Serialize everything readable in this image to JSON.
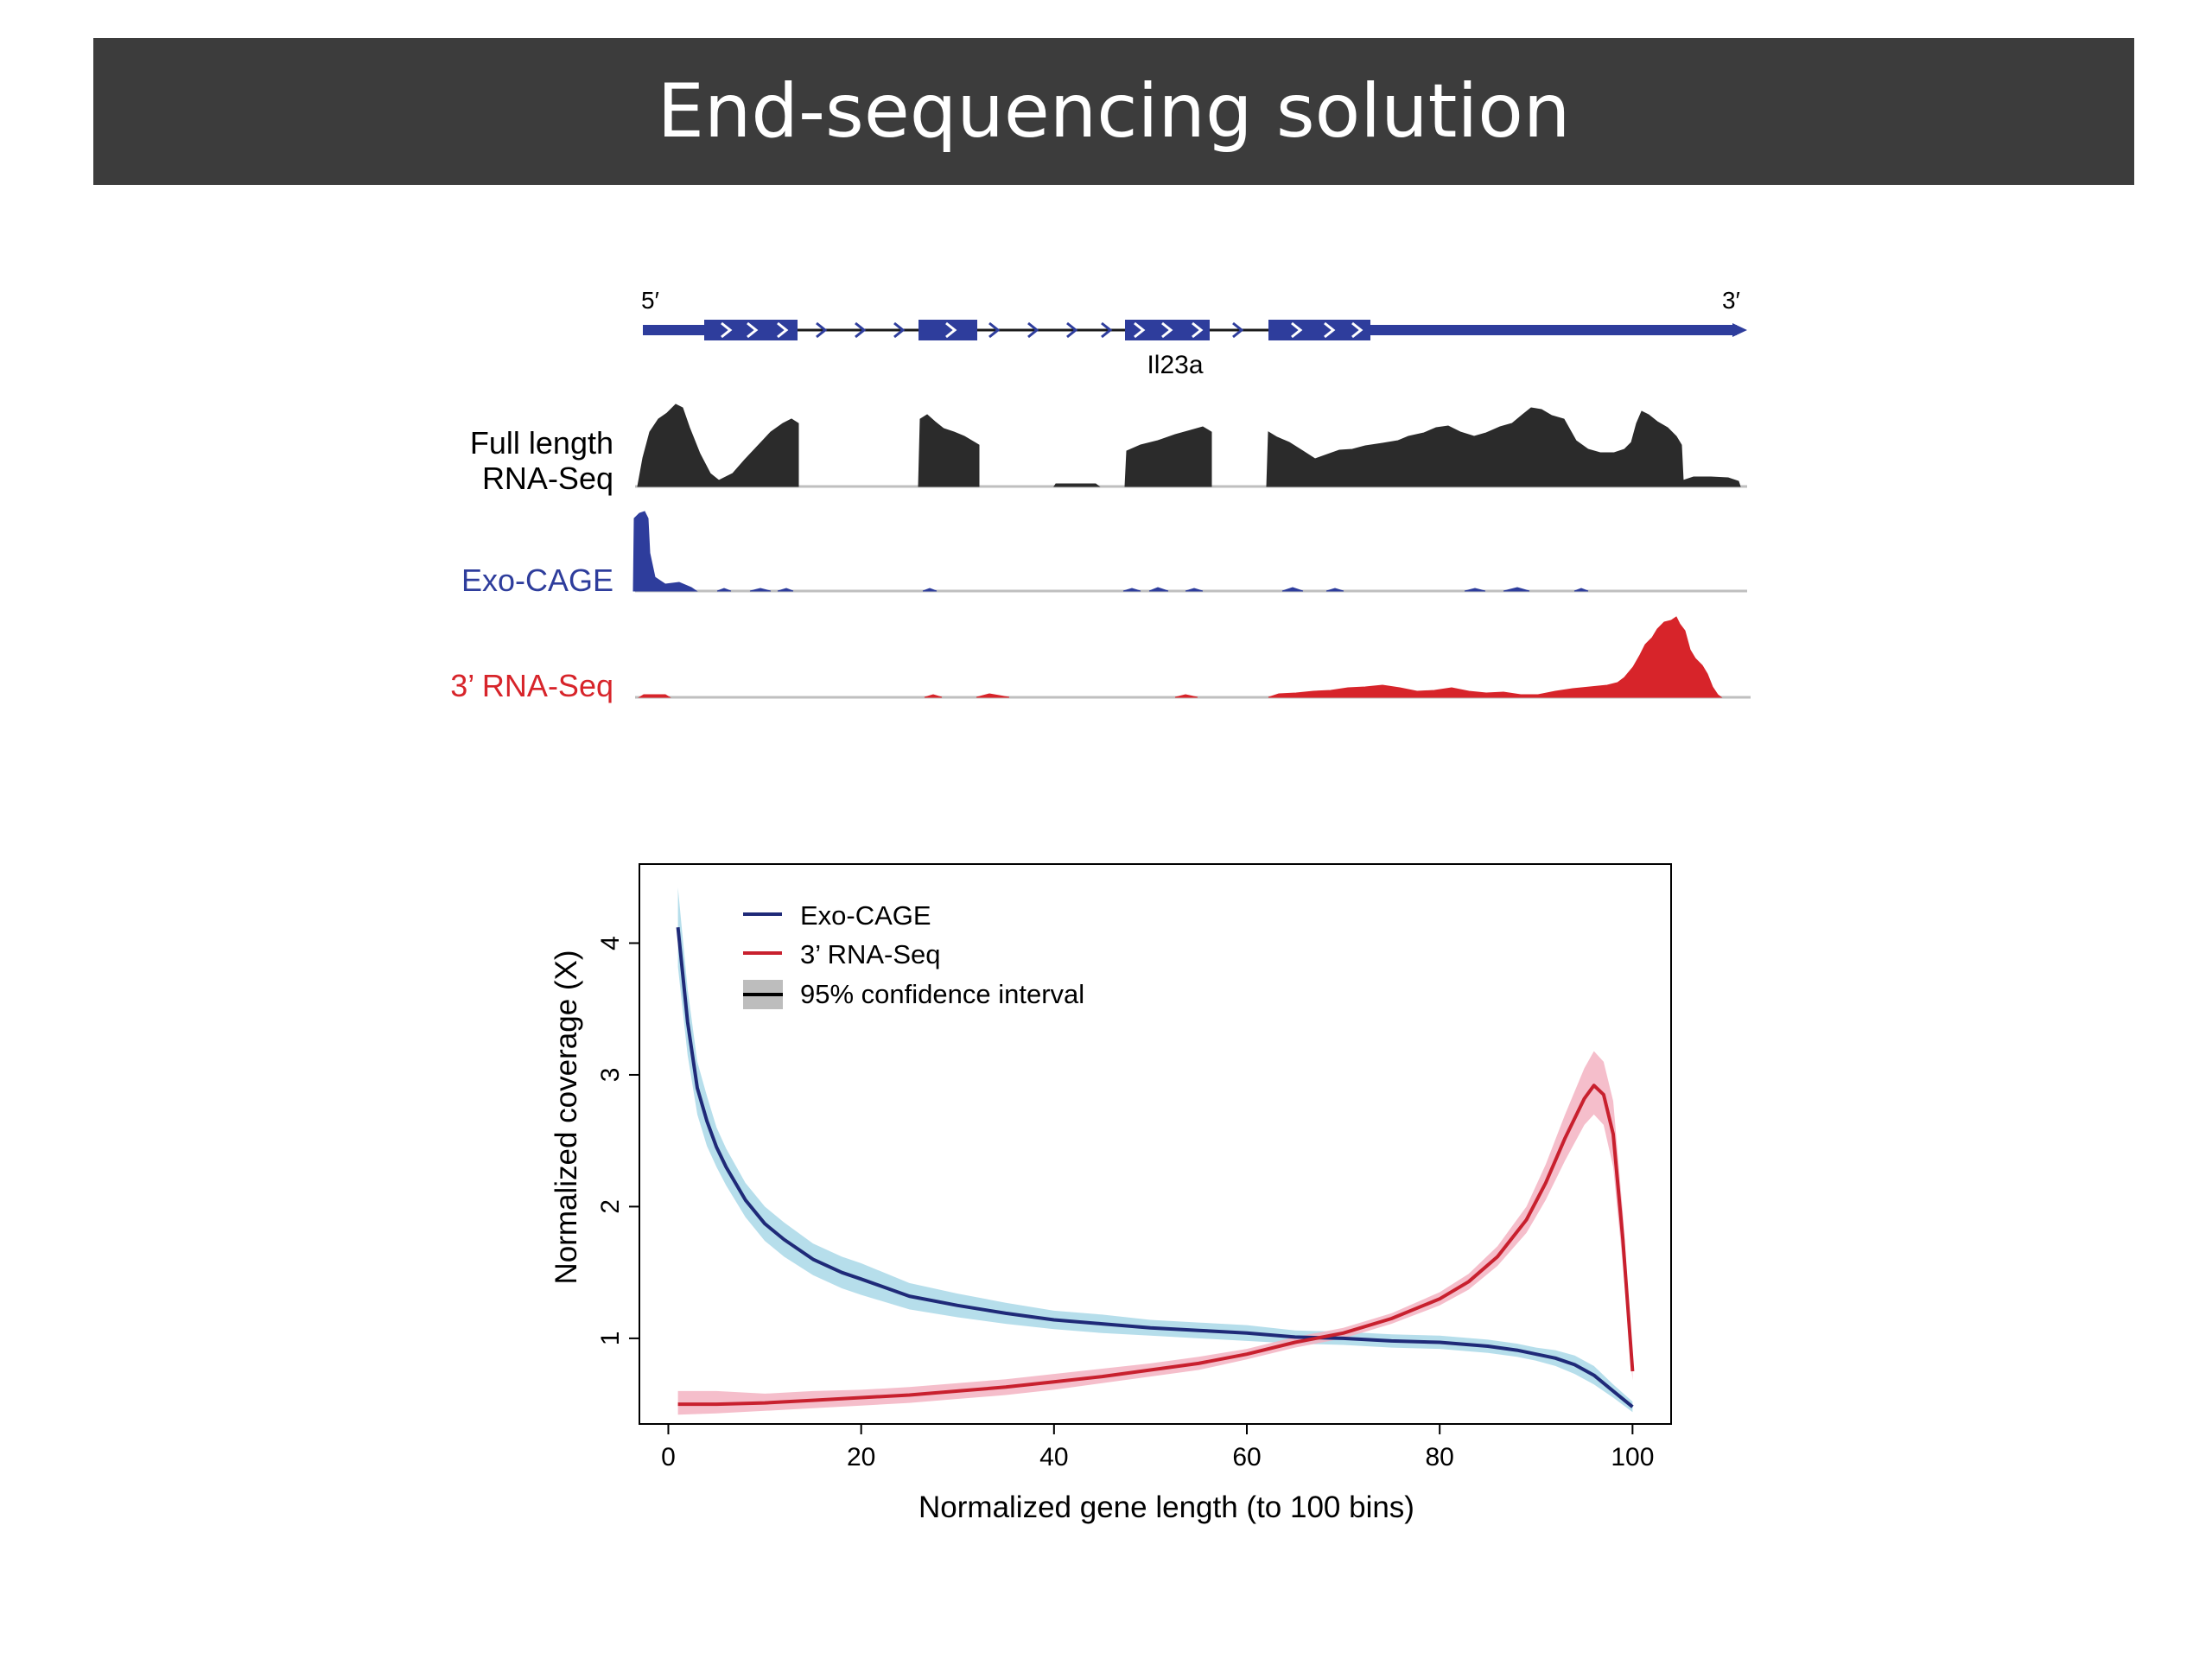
{
  "slide": {
    "title": "End-sequencing solution"
  },
  "gene_panel": {
    "five_prime": "5′",
    "three_prime": "3′",
    "gene_name": "Il23a",
    "tracks": [
      {
        "label_lines": [
          "Full length",
          "RNA-Seq"
        ],
        "color": "#2b2b2b"
      },
      {
        "label_lines": [
          "Exo-CAGE"
        ],
        "color": "#2e3d9c"
      },
      {
        "label_lines": [
          "3’ RNA-Seq"
        ],
        "color": "#d7242a"
      }
    ]
  },
  "chart_data": {
    "type": "line",
    "xlabel": "Normalized gene length (to 100 bins)",
    "ylabel": "Normalized coverage (X)",
    "xlim": [
      -3,
      104
    ],
    "ylim": [
      0.35,
      4.6
    ],
    "xticks": [
      0,
      20,
      40,
      60,
      80,
      100
    ],
    "yticks": [
      1,
      2,
      3,
      4
    ],
    "grid": false,
    "legend_position": "top-left",
    "legend": [
      {
        "label": "Exo-CAGE",
        "kind": "line",
        "color": "#1f2a78"
      },
      {
        "label": "3’ RNA-Seq",
        "kind": "line",
        "color": "#c8202e"
      },
      {
        "label": "95% confidence interval",
        "kind": "band",
        "color": "#bdbdbd"
      }
    ],
    "series": [
      {
        "name": "Exo-CAGE",
        "color": "#1f2a78",
        "band_color": "#a9d8e8",
        "x": [
          1,
          2,
          3,
          4,
          5,
          6,
          8,
          10,
          12,
          15,
          18,
          20,
          25,
          30,
          35,
          40,
          45,
          50,
          55,
          60,
          65,
          70,
          75,
          80,
          85,
          88,
          90,
          92,
          94,
          96,
          98,
          100
        ],
        "y": [
          4.12,
          3.4,
          2.9,
          2.65,
          2.45,
          2.3,
          2.05,
          1.87,
          1.75,
          1.6,
          1.5,
          1.45,
          1.32,
          1.25,
          1.19,
          1.14,
          1.11,
          1.08,
          1.06,
          1.04,
          1.01,
          1.0,
          0.98,
          0.97,
          0.94,
          0.91,
          0.88,
          0.85,
          0.8,
          0.72,
          0.6,
          0.48
        ],
        "ci_low": [
          3.82,
          3.15,
          2.7,
          2.46,
          2.3,
          2.16,
          1.92,
          1.74,
          1.62,
          1.48,
          1.38,
          1.33,
          1.22,
          1.16,
          1.11,
          1.07,
          1.04,
          1.02,
          1.0,
          0.98,
          0.96,
          0.95,
          0.93,
          0.92,
          0.89,
          0.86,
          0.83,
          0.79,
          0.73,
          0.65,
          0.55,
          0.44
        ],
        "ci_high": [
          4.42,
          3.65,
          3.1,
          2.84,
          2.6,
          2.44,
          2.18,
          2.0,
          1.88,
          1.72,
          1.62,
          1.57,
          1.42,
          1.34,
          1.27,
          1.21,
          1.18,
          1.14,
          1.12,
          1.1,
          1.06,
          1.05,
          1.03,
          1.02,
          0.99,
          0.96,
          0.93,
          0.91,
          0.87,
          0.79,
          0.65,
          0.52
        ]
      },
      {
        "name": "3’ RNA-Seq",
        "color": "#c8202e",
        "band_color": "#f3b3c2",
        "x": [
          1,
          5,
          10,
          15,
          20,
          25,
          30,
          35,
          40,
          45,
          50,
          55,
          60,
          65,
          70,
          75,
          80,
          83,
          86,
          89,
          91,
          93,
          95,
          96,
          97,
          98,
          99,
          100
        ],
        "y": [
          0.5,
          0.5,
          0.51,
          0.53,
          0.55,
          0.57,
          0.6,
          0.63,
          0.67,
          0.71,
          0.76,
          0.81,
          0.88,
          0.97,
          1.04,
          1.15,
          1.3,
          1.43,
          1.62,
          1.9,
          2.18,
          2.52,
          2.82,
          2.92,
          2.85,
          2.55,
          1.75,
          0.75
        ],
        "ci_low": [
          0.42,
          0.43,
          0.45,
          0.47,
          0.49,
          0.51,
          0.54,
          0.57,
          0.61,
          0.66,
          0.71,
          0.76,
          0.84,
          0.93,
          1.0,
          1.11,
          1.25,
          1.37,
          1.55,
          1.8,
          2.05,
          2.35,
          2.62,
          2.7,
          2.62,
          2.3,
          1.55,
          0.68
        ],
        "ci_high": [
          0.6,
          0.6,
          0.58,
          0.6,
          0.61,
          0.63,
          0.66,
          0.69,
          0.73,
          0.77,
          0.81,
          0.86,
          0.92,
          1.01,
          1.08,
          1.19,
          1.35,
          1.49,
          1.7,
          2.0,
          2.32,
          2.7,
          3.05,
          3.18,
          3.1,
          2.8,
          1.95,
          0.82
        ]
      }
    ]
  }
}
